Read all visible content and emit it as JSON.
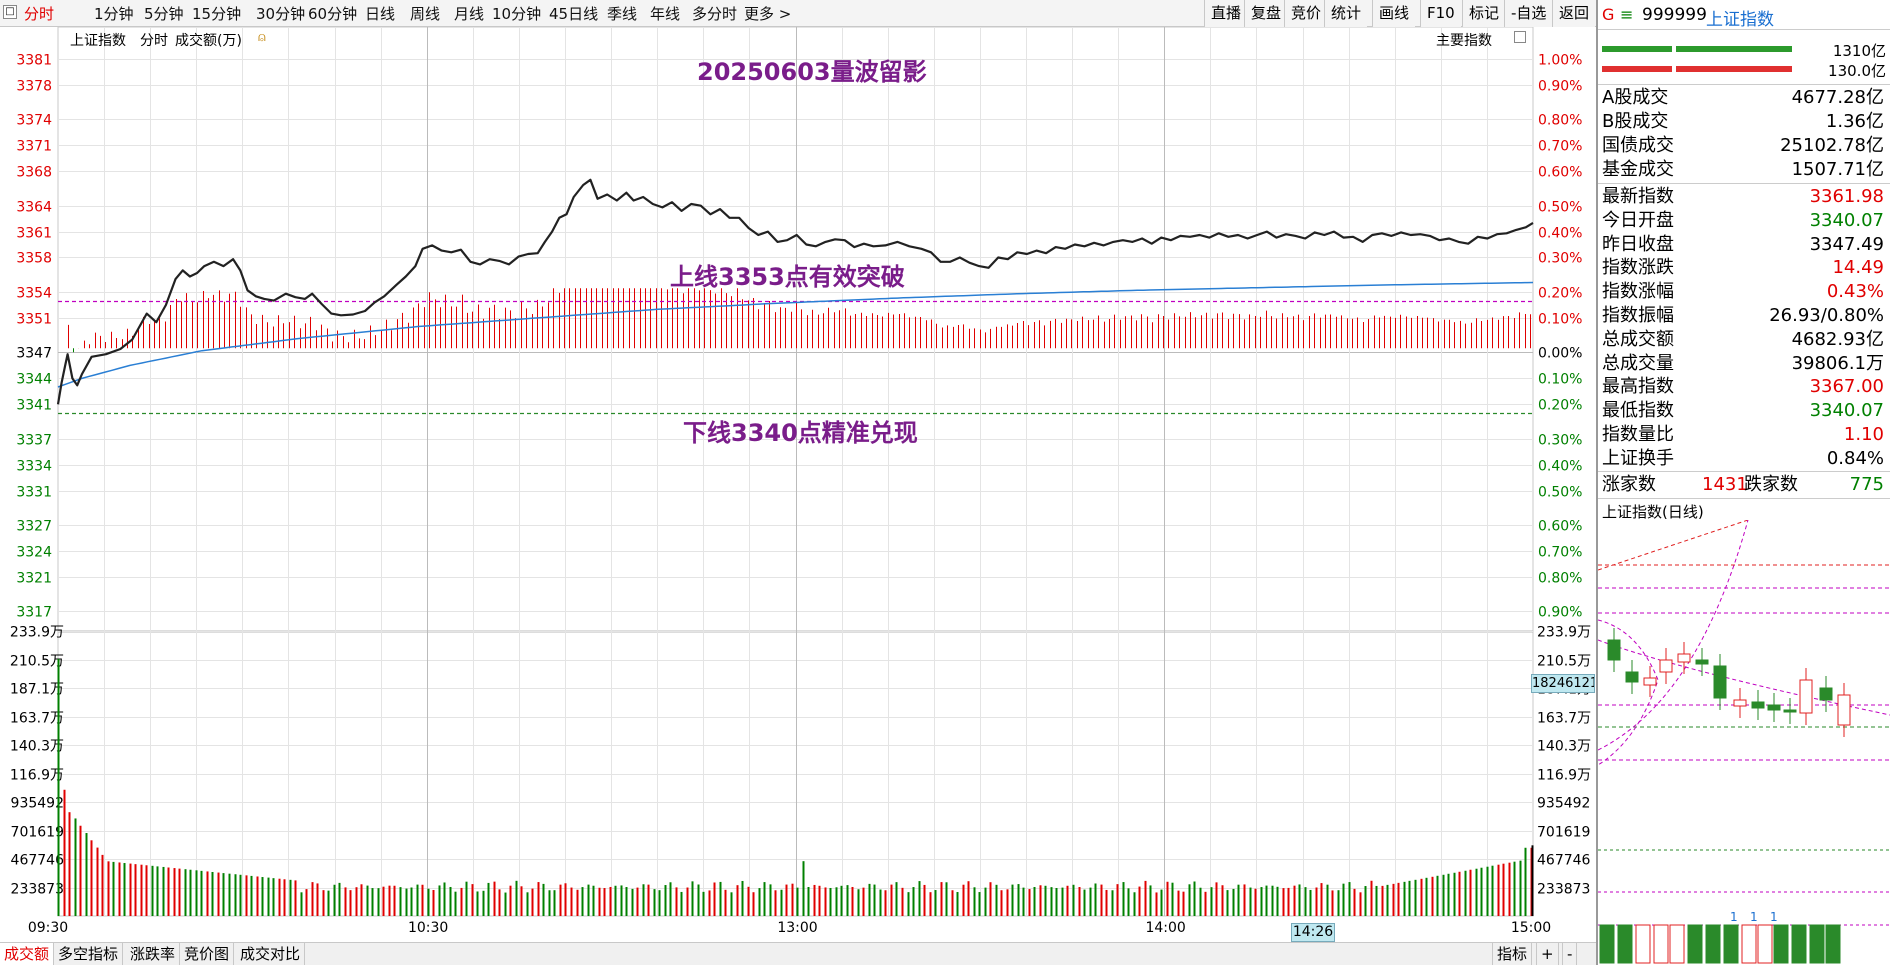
{
  "toolbar": {
    "periods": [
      "分时",
      "1分钟",
      "5分钟",
      "15分钟",
      "30分钟",
      "60分钟",
      "日线",
      "周线",
      "月线",
      "10分钟",
      "45日线",
      "季线",
      "年线",
      "多分时",
      "更多 >"
    ],
    "right_buttons": [
      "直播",
      "复盘",
      "竞价",
      "统计",
      "画线",
      "F10",
      "标记",
      "-自选",
      "返回"
    ]
  },
  "chart_header": {
    "index_name": "上证指数",
    "mode": "分时",
    "volume_label": "成交额(万)",
    "main_index_label": "主要指数"
  },
  "annotations": {
    "title": "20250603量波留影",
    "upper_line": "上线3353点有效突破",
    "lower_line": "下线3340点精准兑现"
  },
  "colors": {
    "up": "#e00000",
    "down": "#008000",
    "price_line": "#222222",
    "avg_line": "#2a7fd4",
    "annotation": "#7a1d8a",
    "guide": "#c000c0"
  },
  "chart_data": {
    "type": "line",
    "prev_close": 3347.49,
    "price_axis_ticks": [
      "3381",
      "3378",
      "3374",
      "3371",
      "3368",
      "3364",
      "3361",
      "3358",
      "3354",
      "3351",
      "3347",
      "3344",
      "3341",
      "3337",
      "3334",
      "3331",
      "3327",
      "3324",
      "3321",
      "3317"
    ],
    "pct_axis_ticks": [
      "1.00%",
      "0.90%",
      "0.80%",
      "0.70%",
      "0.60%",
      "0.50%",
      "0.40%",
      "0.30%",
      "0.20%",
      "0.10%",
      "0.00%",
      "0.10%",
      "0.20%",
      "0.30%",
      "0.40%",
      "0.50%",
      "0.60%",
      "0.70%",
      "0.80%",
      "0.90%"
    ],
    "volume_axis_ticks": [
      "233.9万",
      "210.5万",
      "187.1万",
      "163.7万",
      "140.3万",
      "116.9万",
      "935492",
      "701619",
      "467746",
      "233873"
    ],
    "time_labels": [
      "09:30",
      "10:30",
      "13:00",
      "14:00",
      "15:00"
    ],
    "price_key": [
      [
        0,
        3341.0
      ],
      [
        3,
        3343.5
      ],
      [
        6,
        3345.5
      ],
      [
        8,
        3346.8
      ],
      [
        12,
        3344.0
      ],
      [
        16,
        3343.2
      ],
      [
        20,
        3344.5
      ],
      [
        28,
        3346.5
      ],
      [
        40,
        3346.8
      ],
      [
        52,
        3347.4
      ],
      [
        62,
        3348.5
      ],
      [
        74,
        3351.5
      ],
      [
        82,
        3350.5
      ],
      [
        90,
        3352.5
      ],
      [
        98,
        3355.5
      ],
      [
        104,
        3356.5
      ],
      [
        110,
        3355.8
      ],
      [
        116,
        3356.2
      ],
      [
        122,
        3357.0
      ],
      [
        130,
        3357.5
      ],
      [
        138,
        3357.0
      ],
      [
        146,
        3357.8
      ],
      [
        152,
        3356.5
      ],
      [
        158,
        3354.2
      ],
      [
        165,
        3353.5
      ],
      [
        172,
        3353.2
      ],
      [
        180,
        3353.0
      ],
      [
        190,
        3353.8
      ],
      [
        198,
        3353.4
      ],
      [
        206,
        3353.2
      ],
      [
        212,
        3353.8
      ],
      [
        220,
        3352.6
      ],
      [
        228,
        3351.5
      ],
      [
        236,
        3351.3
      ],
      [
        246,
        3351.4
      ],
      [
        256,
        3351.8
      ],
      [
        264,
        3352.8
      ],
      [
        272,
        3353.5
      ],
      [
        282,
        3354.8
      ],
      [
        290,
        3355.8
      ],
      [
        298,
        3357.0
      ],
      [
        304,
        3359.0
      ],
      [
        312,
        3359.4
      ],
      [
        320,
        3358.8
      ],
      [
        328,
        3358.6
      ],
      [
        336,
        3358.9
      ],
      [
        344,
        3357.5
      ],
      [
        352,
        3357.2
      ],
      [
        360,
        3357.8
      ],
      [
        368,
        3357.6
      ],
      [
        376,
        3357.2
      ],
      [
        384,
        3358.1
      ],
      [
        392,
        3358.4
      ],
      [
        400,
        3358.5
      ],
      [
        406,
        3359.8
      ],
      [
        412,
        3361.0
      ],
      [
        418,
        3362.6
      ],
      [
        424,
        3363.0
      ],
      [
        430,
        3365.0
      ],
      [
        438,
        3366.4
      ],
      [
        444,
        3367.0
      ],
      [
        450,
        3364.8
      ],
      [
        458,
        3365.3
      ],
      [
        466,
        3364.6
      ],
      [
        474,
        3365.5
      ],
      [
        480,
        3364.6
      ],
      [
        488,
        3365.0
      ],
      [
        496,
        3364.2
      ],
      [
        504,
        3363.8
      ],
      [
        512,
        3364.4
      ],
      [
        520,
        3363.4
      ],
      [
        528,
        3364.2
      ],
      [
        536,
        3364.0
      ],
      [
        544,
        3363.0
      ],
      [
        552,
        3363.6
      ],
      [
        560,
        3362.6
      ],
      [
        568,
        3362.6
      ],
      [
        576,
        3361.4
      ],
      [
        584,
        3360.6
      ],
      [
        592,
        3361.0
      ],
      [
        600,
        3359.8
      ],
      [
        608,
        3360.0
      ],
      [
        616,
        3360.6
      ],
      [
        624,
        3359.5
      ],
      [
        632,
        3359.3
      ],
      [
        640,
        3359.8
      ],
      [
        648,
        3360.1
      ],
      [
        656,
        3360.0
      ],
      [
        664,
        3359.2
      ],
      [
        672,
        3359.6
      ],
      [
        680,
        3359.3
      ],
      [
        690,
        3359.4
      ],
      [
        700,
        3359.8
      ],
      [
        710,
        3359.3
      ],
      [
        720,
        3359.0
      ],
      [
        728,
        3358.6
      ],
      [
        736,
        3357.5
      ],
      [
        744,
        3357.5
      ],
      [
        752,
        3358.0
      ],
      [
        760,
        3357.4
      ],
      [
        768,
        3357.0
      ],
      [
        776,
        3356.8
      ],
      [
        784,
        3358.0
      ],
      [
        792,
        3357.8
      ],
      [
        800,
        3358.6
      ],
      [
        808,
        3358.4
      ],
      [
        816,
        3358.8
      ],
      [
        824,
        3358.5
      ],
      [
        832,
        3359.2
      ],
      [
        840,
        3359.0
      ],
      [
        848,
        3359.5
      ],
      [
        856,
        3359.3
      ],
      [
        864,
        3359.7
      ],
      [
        872,
        3359.4
      ],
      [
        880,
        3359.8
      ],
      [
        888,
        3360.0
      ],
      [
        896,
        3359.8
      ],
      [
        904,
        3360.2
      ],
      [
        912,
        3359.6
      ],
      [
        920,
        3360.3
      ],
      [
        928,
        3360.0
      ],
      [
        936,
        3360.5
      ],
      [
        944,
        3360.4
      ],
      [
        952,
        3360.6
      ],
      [
        960,
        3360.3
      ],
      [
        968,
        3360.8
      ],
      [
        976,
        3360.4
      ],
      [
        984,
        3360.6
      ],
      [
        992,
        3360.2
      ],
      [
        1000,
        3360.6
      ],
      [
        1008,
        3361.0
      ],
      [
        1016,
        3360.3
      ],
      [
        1024,
        3360.7
      ],
      [
        1032,
        3360.5
      ],
      [
        1040,
        3360.2
      ],
      [
        1048,
        3360.9
      ],
      [
        1056,
        3360.6
      ],
      [
        1064,
        3361.0
      ],
      [
        1072,
        3360.3
      ],
      [
        1080,
        3360.4
      ],
      [
        1088,
        3359.8
      ],
      [
        1096,
        3360.6
      ],
      [
        1104,
        3360.8
      ],
      [
        1112,
        3360.5
      ],
      [
        1120,
        3360.9
      ],
      [
        1128,
        3360.6
      ],
      [
        1136,
        3360.7
      ],
      [
        1144,
        3360.5
      ],
      [
        1152,
        3360.0
      ],
      [
        1160,
        3360.2
      ],
      [
        1168,
        3359.8
      ],
      [
        1176,
        3359.6
      ],
      [
        1184,
        3360.4
      ],
      [
        1192,
        3360.2
      ],
      [
        1200,
        3360.7
      ],
      [
        1208,
        3360.8
      ],
      [
        1216,
        3361.2
      ],
      [
        1224,
        3361.5
      ],
      [
        1230,
        3362.0
      ]
    ],
    "avg_key": [
      [
        0,
        3343.0
      ],
      [
        20,
        3344.0
      ],
      [
        60,
        3345.5
      ],
      [
        120,
        3347.2
      ],
      [
        200,
        3348.6
      ],
      [
        300,
        3350.0
      ],
      [
        400,
        3351.0
      ],
      [
        500,
        3352.0
      ],
      [
        600,
        3352.7
      ],
      [
        700,
        3353.3
      ],
      [
        800,
        3353.8
      ],
      [
        900,
        3354.2
      ],
      [
        1000,
        3354.5
      ],
      [
        1100,
        3354.8
      ],
      [
        1230,
        3355.1
      ]
    ],
    "upper_line_value": 3353,
    "lower_line_value": 3340,
    "y_range": [
      3315.2,
      3381.8
    ],
    "volume_range_wan": [
      0,
      233.9
    ]
  },
  "right_panel": {
    "header": {
      "code": "999999",
      "name": "上证指数"
    },
    "breadth_values": [
      "1310亿",
      "130.0亿"
    ],
    "turnover": [
      {
        "label": "A股成交",
        "value": "4677.28亿"
      },
      {
        "label": "B股成交",
        "value": "1.36亿"
      },
      {
        "label": "国债成交",
        "value": "25102.78亿"
      },
      {
        "label": "基金成交",
        "value": "1507.71亿"
      }
    ],
    "stats": [
      {
        "label": "最新指数",
        "value": "3361.98",
        "color": "red"
      },
      {
        "label": "今日开盘",
        "value": "3340.07",
        "color": "green"
      },
      {
        "label": "昨日收盘",
        "value": "3347.49",
        "color": "blk"
      },
      {
        "label": "指数涨跌",
        "value": "14.49",
        "color": "red"
      },
      {
        "label": "指数涨幅",
        "value": "0.43%",
        "color": "red"
      },
      {
        "label": "指数振幅",
        "value": "26.93/0.80%",
        "color": "blk"
      },
      {
        "label": "总成交额",
        "value": "4682.93亿",
        "color": "blk"
      },
      {
        "label": "总成交量",
        "value": "39806.1万",
        "color": "blk"
      },
      {
        "label": "最高指数",
        "value": "3367.00",
        "color": "red"
      },
      {
        "label": "最低指数",
        "value": "3340.07",
        "color": "green"
      },
      {
        "label": "指数量比",
        "value": "1.10",
        "color": "red"
      },
      {
        "label": "上证换手",
        "value": "0.84%",
        "color": "blk"
      }
    ],
    "advance_label": "涨家数",
    "advance": "1431",
    "decline_label": "跌家数",
    "decline": "775",
    "mini_title": "上证指数(日线)",
    "mini_vol_labels": [
      "1",
      "1",
      "1"
    ]
  },
  "bottombar": {
    "tabs": [
      "成交额",
      "多空指标",
      "涨跌率",
      "竞价图",
      "成交对比"
    ],
    "right": [
      "指标",
      "+",
      "-"
    ]
  },
  "cursor": {
    "time": "14:26",
    "value": "18246121"
  }
}
